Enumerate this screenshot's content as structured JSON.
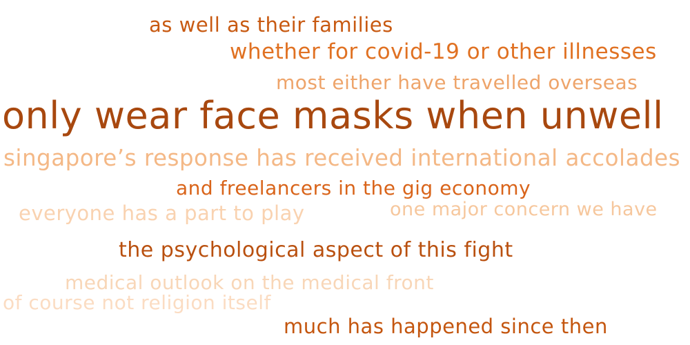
{
  "word_cloud": {
    "phrases": [
      {
        "text": "as well as their families",
        "color": "#c85a12"
      },
      {
        "text": "whether for covid-19 or other illnesses",
        "color": "#e07122"
      },
      {
        "text": "most either have travelled overseas",
        "color": "#eea46a"
      },
      {
        "text": "only wear face masks when unwell",
        "color": "#a8480f"
      },
      {
        "text": "singapore’s response has received international accolades",
        "color": "#f4b886"
      },
      {
        "text": "and freelancers in the gig economy",
        "color": "#d9641a"
      },
      {
        "text": "everyone has a part to play",
        "color": "#f9d2b0"
      },
      {
        "text": "one major concern we have",
        "color": "#f6c79d"
      },
      {
        "text": "the psychological aspect of this fight",
        "color": "#b9500f"
      },
      {
        "text": "medical outlook on the medical front",
        "color": "#f8d6b7"
      },
      {
        "text": "of course not religion itself",
        "color": "#fbdcc2"
      },
      {
        "text": "much has happened since then",
        "color": "#c4560f"
      }
    ]
  }
}
